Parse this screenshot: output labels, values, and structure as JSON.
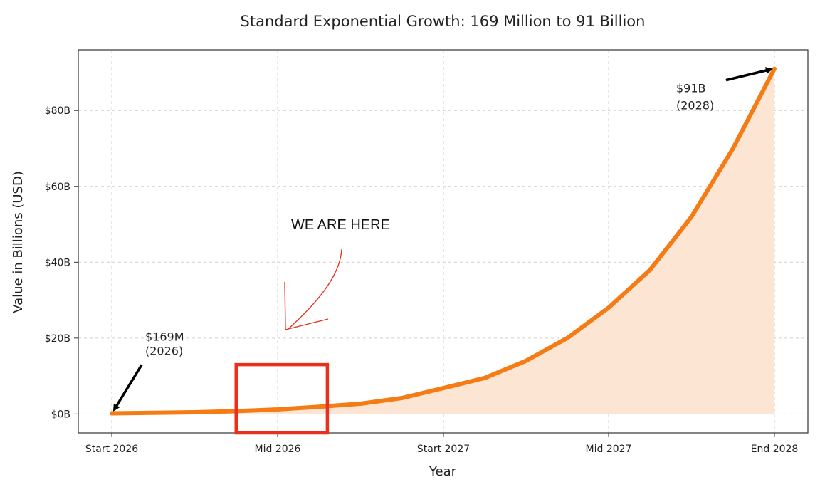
{
  "chart_data": {
    "type": "area",
    "title": "Standard Exponential Growth: 169 Million to 91 Billion",
    "xlabel": "Year",
    "ylabel": "Value in Billions (USD)",
    "x_ticks": [
      "Start 2026",
      "Mid 2026",
      "Start 2027",
      "Mid 2027",
      "End 2028"
    ],
    "y_ticks": [
      "$0B",
      "$20B",
      "$40B",
      "$60B",
      "$80B"
    ],
    "ylim": [
      -5,
      96
    ],
    "grid": true,
    "series": [
      {
        "x": [
          0,
          0.25,
          0.5,
          0.75,
          1.0,
          1.25,
          1.5,
          1.75,
          2.0,
          2.25,
          2.5,
          2.75,
          3.0,
          3.25,
          3.5,
          3.75,
          4.0
        ],
        "values": [
          0.17,
          0.3,
          0.45,
          0.75,
          1.2,
          1.9,
          2.7,
          4.2,
          6.8,
          9.5,
          14,
          20,
          28,
          38,
          52,
          70,
          91
        ],
        "color": "#f57c14",
        "fill_color": "#fde5d3"
      }
    ],
    "annotations": [
      {
        "text_line1": "$169M",
        "text_line2": "(2026)",
        "x": 0,
        "y": 0.17,
        "arrow_color": "#000000"
      },
      {
        "text_line1": "$91B",
        "text_line2": "(2028)",
        "x": 4.0,
        "y": 91,
        "arrow_color": "#000000"
      }
    ],
    "overlay": {
      "text": "WE ARE HERE",
      "box_color": "#e8301c",
      "box_x_range": [
        0.75,
        1.3
      ],
      "box_y_range": [
        -5,
        13
      ],
      "arrow_color": "#e8301c"
    }
  }
}
